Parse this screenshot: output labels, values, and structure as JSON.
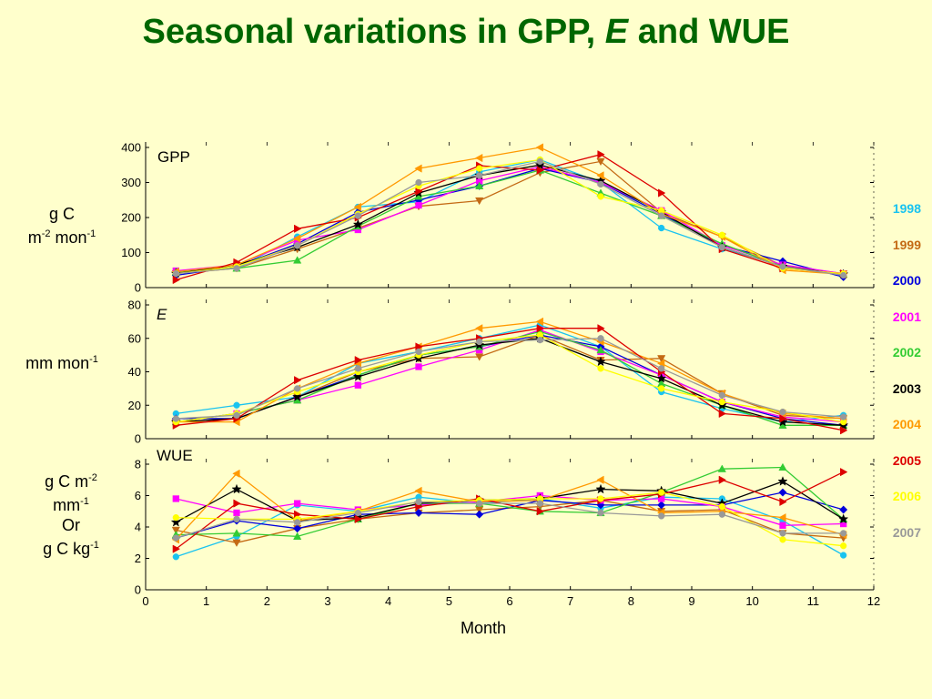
{
  "title": {
    "main": "Seasonal variations in GPP,",
    "italic": "E",
    "rest": "and WUE"
  },
  "ylabels": {
    "gpp": {
      "line1": "g C",
      "line2a": "m",
      "sup1": "-2",
      "line2b": " mon",
      "sup2": "-1"
    },
    "e": {
      "a": "mm mon",
      "sup": "-1"
    },
    "wue": {
      "l1a": "g C m",
      "l1sup": "-2",
      "l2a": "mm",
      "l2sup": "-1",
      "l3": "Or",
      "l4a": "g C kg",
      "l4sup": "-1"
    }
  },
  "legend": [
    {
      "label": "1998",
      "color": "#19c3f0"
    },
    {
      "label": "1999",
      "color": "#c46a14"
    },
    {
      "label": "2000",
      "color": "#0000dd"
    },
    {
      "label": "2001",
      "color": "#ff00ff"
    },
    {
      "label": "2002",
      "color": "#33cc33"
    },
    {
      "label": "2003",
      "color": "#000000"
    },
    {
      "label": "2004",
      "color": "#ff9900"
    },
    {
      "label": "2005",
      "color": "#dd0000"
    },
    {
      "label": "2006",
      "color": "#ffff00"
    },
    {
      "label": "2007",
      "color": "#999999"
    }
  ],
  "chart_data": [
    {
      "type": "line",
      "panel_label": "GPP",
      "xlim": [
        0,
        12
      ],
      "ylim": [
        0,
        400
      ],
      "yticks": [
        0,
        100,
        200,
        300,
        400
      ],
      "x": [
        0.5,
        1.5,
        2.5,
        3.5,
        4.5,
        5.5,
        6.5,
        7.5,
        8.5,
        9.5,
        10.5,
        11.5
      ],
      "series": [
        {
          "name": "1998",
          "marker": "circle",
          "values": [
            48,
            55,
            145,
            230,
            245,
            330,
            365,
            300,
            170,
            110,
            65,
            35
          ]
        },
        {
          "name": "1999",
          "marker": "triangle-down",
          "values": [
            40,
            55,
            110,
            170,
            232,
            248,
            328,
            360,
            215,
            145,
            62,
            40
          ]
        },
        {
          "name": "2000",
          "marker": "diamond",
          "values": [
            35,
            60,
            125,
            215,
            250,
            290,
            340,
            300,
            210,
            120,
            75,
            30
          ]
        },
        {
          "name": "2001",
          "marker": "square",
          "values": [
            48,
            65,
            135,
            165,
            235,
            305,
            345,
            300,
            220,
            120,
            65,
            40
          ]
        },
        {
          "name": "2002",
          "marker": "triangle-up",
          "values": [
            45,
            55,
            78,
            175,
            260,
            290,
            335,
            270,
            205,
            125,
            60,
            38
          ]
        },
        {
          "name": "2003",
          "marker": "star",
          "values": [
            40,
            65,
            115,
            180,
            270,
            320,
            350,
            305,
            215,
            115,
            60,
            38
          ]
        },
        {
          "name": "2004",
          "marker": "triangle-left",
          "values": [
            45,
            65,
            140,
            230,
            340,
            370,
            400,
            320,
            210,
            145,
            50,
            38
          ]
        },
        {
          "name": "2005",
          "marker": "triangle-right",
          "values": [
            22,
            72,
            168,
            200,
            275,
            348,
            335,
            380,
            270,
            110,
            55,
            40
          ]
        },
        {
          "name": "2006",
          "marker": "circle",
          "values": [
            40,
            60,
            120,
            210,
            290,
            340,
            365,
            260,
            220,
            150,
            55,
            40
          ]
        },
        {
          "name": "2007",
          "marker": "circle",
          "values": [
            40,
            55,
            120,
            205,
            300,
            320,
            360,
            295,
            205,
            115,
            60,
            35
          ]
        }
      ]
    },
    {
      "type": "line",
      "panel_label": "E",
      "xlim": [
        0,
        12
      ],
      "ylim": [
        0,
        80
      ],
      "yticks": [
        0,
        20,
        40,
        60,
        80
      ],
      "x": [
        0.5,
        1.5,
        2.5,
        3.5,
        4.5,
        5.5,
        6.5,
        7.5,
        8.5,
        9.5,
        10.5,
        11.5
      ],
      "series": [
        {
          "name": "1998",
          "marker": "circle",
          "values": [
            15,
            20,
            25,
            45,
            52,
            60,
            68,
            55,
            28,
            18,
            10,
            14
          ]
        },
        {
          "name": "1999",
          "marker": "triangle-down",
          "values": [
            10,
            12,
            25,
            40,
            48,
            49,
            62,
            47,
            48,
            27,
            14,
            12
          ]
        },
        {
          "name": "2000",
          "marker": "diamond",
          "values": [
            12,
            12,
            25,
            38,
            50,
            55,
            62,
            55,
            38,
            22,
            12,
            8
          ]
        },
        {
          "name": "2001",
          "marker": "square",
          "values": [
            10,
            15,
            23,
            32,
            43,
            53,
            65,
            52,
            38,
            22,
            13,
            10
          ]
        },
        {
          "name": "2002",
          "marker": "triangle-up",
          "values": [
            10,
            15,
            23,
            38,
            50,
            55,
            64,
            53,
            33,
            20,
            8,
            8
          ]
        },
        {
          "name": "2003",
          "marker": "star",
          "values": [
            10,
            12,
            25,
            37,
            48,
            56,
            60,
            46,
            36,
            20,
            10,
            8
          ]
        },
        {
          "name": "2004",
          "marker": "triangle-left",
          "values": [
            10,
            10,
            30,
            45,
            55,
            66,
            70,
            58,
            45,
            27,
            15,
            12
          ]
        },
        {
          "name": "2005",
          "marker": "triangle-right",
          "values": [
            8,
            12,
            35,
            47,
            55,
            60,
            66,
            66,
            40,
            15,
            12,
            5
          ]
        },
        {
          "name": "2006",
          "marker": "circle",
          "values": [
            10,
            15,
            28,
            40,
            50,
            58,
            62,
            42,
            30,
            22,
            16,
            10
          ]
        },
        {
          "name": "2007",
          "marker": "circle",
          "values": [
            12,
            14,
            30,
            42,
            52,
            58,
            59,
            60,
            42,
            26,
            16,
            13
          ]
        }
      ]
    },
    {
      "type": "line",
      "panel_label": "WUE",
      "xlabel": "Month",
      "xlim": [
        0,
        12
      ],
      "ylim": [
        0,
        8
      ],
      "yticks": [
        0,
        2,
        4,
        6,
        8
      ],
      "xticks": [
        0,
        1,
        2,
        3,
        4,
        5,
        6,
        7,
        8,
        9,
        10,
        11,
        12
      ],
      "x": [
        0.5,
        1.5,
        2.5,
        3.5,
        4.5,
        5.5,
        6.5,
        7.5,
        8.5,
        9.5,
        10.5,
        11.5
      ],
      "series": [
        {
          "name": "1998",
          "marker": "circle",
          "values": [
            2.1,
            3.4,
            5.4,
            5.0,
            5.9,
            5.5,
            5.8,
            5.2,
            5.9,
            5.8,
            4.4,
            2.2
          ]
        },
        {
          "name": "1999",
          "marker": "triangle-down",
          "values": [
            3.8,
            3.0,
            3.9,
            4.5,
            4.9,
            5.1,
            5.3,
            5.7,
            5.0,
            5.1,
            3.6,
            3.3
          ]
        },
        {
          "name": "2000",
          "marker": "diamond",
          "values": [
            3.3,
            4.4,
            3.9,
            4.8,
            4.9,
            4.8,
            5.7,
            5.4,
            5.4,
            5.4,
            6.2,
            5.1
          ]
        },
        {
          "name": "2001",
          "marker": "square",
          "values": [
            5.8,
            4.9,
            5.5,
            5.1,
            5.4,
            5.6,
            6.0,
            5.7,
            5.8,
            5.3,
            4.1,
            4.2
          ]
        },
        {
          "name": "2002",
          "marker": "triangle-up",
          "values": [
            3.5,
            3.6,
            3.4,
            4.5,
            5.5,
            5.5,
            5.0,
            4.9,
            6.2,
            7.7,
            7.8,
            4.5
          ]
        },
        {
          "name": "2003",
          "marker": "star",
          "values": [
            4.3,
            6.4,
            4.4,
            4.6,
            5.5,
            5.7,
            5.8,
            6.4,
            6.3,
            5.5,
            6.9,
            4.5
          ]
        },
        {
          "name": "2004",
          "marker": "triangle-left",
          "values": [
            3.2,
            7.4,
            4.4,
            5.0,
            6.3,
            5.6,
            5.7,
            7.0,
            4.9,
            5.0,
            4.6,
            3.5
          ]
        },
        {
          "name": "2005",
          "marker": "triangle-right",
          "values": [
            2.6,
            5.5,
            4.8,
            4.5,
            5.3,
            5.8,
            5.0,
            5.7,
            6.1,
            7.0,
            5.6,
            7.5
          ]
        },
        {
          "name": "2006",
          "marker": "circle",
          "values": [
            4.6,
            4.5,
            4.5,
            5.0,
            5.6,
            5.7,
            5.8,
            5.8,
            6.2,
            5.3,
            3.2,
            2.8
          ]
        },
        {
          "name": "2007",
          "marker": "circle",
          "values": [
            3.3,
            4.5,
            4.3,
            4.9,
            5.6,
            5.5,
            5.5,
            4.9,
            4.7,
            4.8,
            3.6,
            3.6
          ]
        }
      ]
    }
  ]
}
